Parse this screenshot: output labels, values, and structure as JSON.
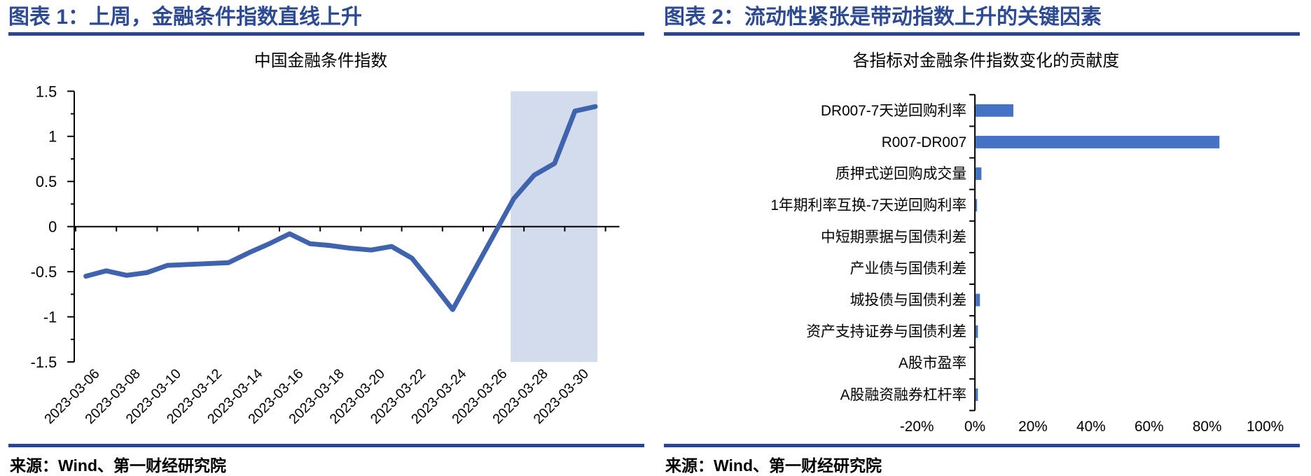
{
  "page": {
    "background": "#ffffff",
    "accent_rule_color": "#2b4590",
    "header_color": "#2d4a92"
  },
  "panels": [
    {
      "header": "图表 1：上周，金融条件指数直线上升",
      "source": "来源：Wind、第一财经研究院"
    },
    {
      "header": "图表 2：流动性紧张是带动指数上升的关键因素",
      "source": "来源：Wind、第一财经研究院"
    }
  ],
  "chart_data": [
    {
      "type": "line",
      "title": "中国金融条件指数",
      "x": [
        "2023-03-06",
        "2023-03-07",
        "2023-03-08",
        "2023-03-09",
        "2023-03-10",
        "2023-03-11",
        "2023-03-12",
        "2023-03-13",
        "2023-03-14",
        "2023-03-15",
        "2023-03-16",
        "2023-03-17",
        "2023-03-18",
        "2023-03-19",
        "2023-03-20",
        "2023-03-21",
        "2023-03-22",
        "2023-03-23",
        "2023-03-24",
        "2023-03-25",
        "2023-03-26",
        "2023-03-27",
        "2023-03-28",
        "2023-03-29",
        "2023-03-30",
        "2023-03-31"
      ],
      "values": [
        -0.55,
        -0.49,
        -0.54,
        -0.51,
        -0.43,
        -0.42,
        -0.41,
        -0.4,
        -0.29,
        -0.19,
        -0.08,
        -0.19,
        -0.21,
        -0.24,
        -0.26,
        -0.22,
        -0.35,
        -0.63,
        -0.92,
        -0.51,
        -0.1,
        0.31,
        0.57,
        0.7,
        1.28,
        1.33
      ],
      "x_tick_labels": [
        "2023-03-06",
        "2023-03-08",
        "2023-03-10",
        "2023-03-12",
        "2023-03-14",
        "2023-03-16",
        "2023-03-18",
        "2023-03-20",
        "2023-03-22",
        "2023-03-24",
        "2023-03-26",
        "2023-03-28",
        "2023-03-30"
      ],
      "ylim": [
        -1.5,
        1.5
      ],
      "y_ticks": [
        1.5,
        1,
        0.5,
        0,
        -0.5,
        -1,
        -1.5
      ],
      "y_minor_tick_step": 0.25,
      "grid": false,
      "legend": "none",
      "line_color": "#3f63ad",
      "highlight": {
        "x_from": "2023-03-27",
        "x_to": "2023-03-31",
        "color": "#d3dcec"
      }
    },
    {
      "type": "bar",
      "orientation": "horizontal",
      "title": "各指标对金融条件指数变化的贡献度",
      "categories": [
        "DR007-7天逆回购利率",
        "R007-DR007",
        "质押式逆回购成交量",
        "1年期利率互换-7天逆回购利率",
        "中短期票据与国债利差",
        "产业债与国债利差",
        "城投债与国债利差",
        "资产支持证券与国债利差",
        "A股市盈率",
        "A股融资融券杠杆率"
      ],
      "values": [
        13,
        84,
        2,
        0.5,
        0,
        0,
        1.5,
        0.8,
        0,
        0.8
      ],
      "unit": "%",
      "xlim": [
        -20,
        100
      ],
      "x_ticks": [
        -20,
        0,
        20,
        40,
        60,
        80,
        100
      ],
      "x_tick_labels": [
        "-20%",
        "0%",
        "20%",
        "40%",
        "60%",
        "80%",
        "100%"
      ],
      "grid": false,
      "legend": "none",
      "bar_color": "#4472c4"
    }
  ]
}
